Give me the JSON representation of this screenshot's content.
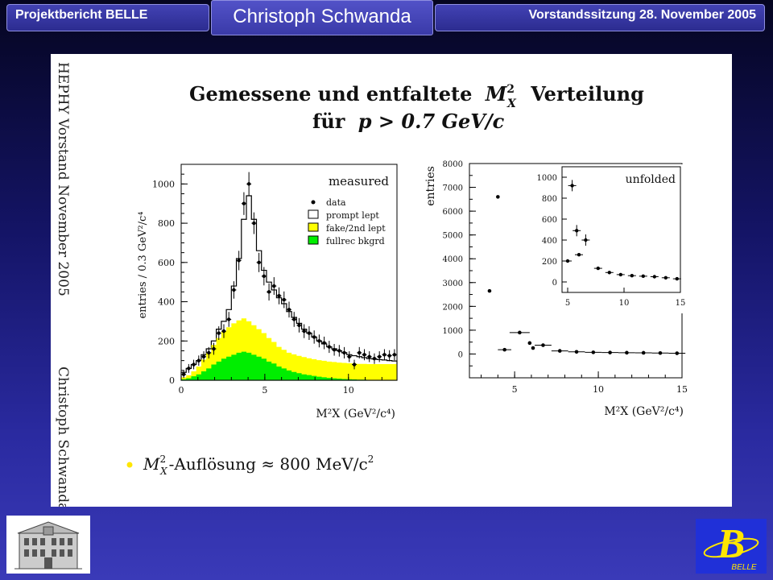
{
  "header": {
    "left": "Projektbericht BELLE",
    "center": "Christoph Schwanda",
    "right": "Vorstandssitzung 28. November 2005"
  },
  "slide": {
    "sidebar_top": "HEPHY Vorstand November 2005",
    "sidebar_bottom": "Christoph Schwanda",
    "title_line1": "Gemessene und entfaltete",
    "title_mx": "M",
    "title_sup": "2",
    "title_sub": "X",
    "title_line1_end": "Verteilung",
    "title_line2_pre": "für",
    "title_line2_math": "p > 0.7 GeV/c",
    "bullet_mx": "M",
    "bullet_sup": "2",
    "bullet_sub": "X",
    "bullet_text": "-Auflösung ≈ 800 MeV/c",
    "bullet_sup2": "2",
    "bullet_color": "#ffe600"
  },
  "chart_data": [
    {
      "type": "scatter",
      "title": "measured",
      "ylabel": "entries / 0.3 GeV²/c⁴",
      "xlabel": "M²X (GeV²/c⁴)",
      "xlim": [
        0,
        12.9
      ],
      "ylim": [
        0,
        1100
      ],
      "xticks": [
        "0",
        "5",
        "10"
      ],
      "yticks": [
        "0",
        "200",
        "400",
        "600",
        "800",
        "1000"
      ],
      "legend": [
        "data",
        "prompt lept",
        "fake/2nd lept",
        "fullrec bkgrd"
      ],
      "legend_placement": "top-right",
      "colors": {
        "data": "#000000",
        "prompt": "#ffffff",
        "fake": "#ffff00",
        "fullrec": "#00ee00"
      },
      "data": {
        "x": [
          0.15,
          0.45,
          0.75,
          1.05,
          1.35,
          1.65,
          1.95,
          2.25,
          2.55,
          2.85,
          3.15,
          3.45,
          3.75,
          4.05,
          4.35,
          4.65,
          4.95,
          5.25,
          5.55,
          5.85,
          6.15,
          6.45,
          6.75,
          7.05,
          7.35,
          7.65,
          7.95,
          8.25,
          8.55,
          8.85,
          9.15,
          9.45,
          9.75,
          10.05,
          10.35,
          10.65,
          10.95,
          11.25,
          11.55,
          11.85,
          12.15,
          12.45,
          12.75
        ],
        "y": [
          30,
          60,
          80,
          100,
          120,
          140,
          160,
          240,
          250,
          310,
          460,
          610,
          900,
          1000,
          800,
          600,
          530,
          450,
          480,
          430,
          410,
          360,
          310,
          280,
          250,
          240,
          220,
          200,
          190,
          170,
          155,
          150,
          140,
          120,
          80,
          140,
          130,
          120,
          110,
          120,
          130,
          125,
          130
        ]
      },
      "prompt_lept": [
        40,
        60,
        80,
        100,
        130,
        160,
        200,
        260,
        300,
        360,
        480,
        620,
        820,
        940,
        820,
        660,
        560,
        500,
        460,
        420,
        390,
        350,
        320,
        290,
        260,
        240,
        220,
        200,
        185,
        170,
        160,
        150,
        140,
        130,
        125,
        120,
        115,
        110,
        108,
        105,
        103,
        100,
        98
      ],
      "fake_2nd_lept": [
        10,
        15,
        25,
        40,
        60,
        80,
        100,
        120,
        140,
        150,
        160,
        165,
        170,
        160,
        150,
        140,
        130,
        120,
        110,
        100,
        95,
        90,
        90,
        88,
        88,
        86,
        85,
        84,
        84,
        83,
        83,
        82,
        82,
        81,
        81,
        80,
        80,
        80,
        80,
        80,
        80,
        80,
        80
      ],
      "fullrec_bkgrd": [
        5,
        10,
        20,
        30,
        45,
        60,
        80,
        95,
        110,
        120,
        130,
        140,
        145,
        140,
        130,
        120,
        110,
        95,
        85,
        70,
        60,
        50,
        42,
        36,
        30,
        26,
        22,
        18,
        15,
        12,
        10,
        8,
        6,
        5,
        4,
        3,
        3,
        2,
        2,
        2,
        2,
        2,
        2
      ]
    },
    {
      "type": "scatter",
      "title": "unfolded",
      "ylabel": "entries",
      "xlabel": "M²X (GeV²/c⁴)",
      "xlim": [
        2.3,
        15
      ],
      "ylim": [
        -1000,
        8000
      ],
      "xticks": [
        "5",
        "10",
        "15"
      ],
      "yticks": [
        "0",
        "1000",
        "2000",
        "3000",
        "4000",
        "5000",
        "6000",
        "7000",
        "8000"
      ],
      "data": {
        "x": [
          3.5,
          4.0,
          4.4,
          5.3,
          5.9,
          6.1,
          6.7,
          7.7,
          8.7,
          9.7,
          10.7,
          11.7,
          12.7,
          13.7,
          14.7
        ],
        "y": [
          2650,
          6600,
          180,
          900,
          460,
          250,
          370,
          130,
          90,
          70,
          60,
          55,
          50,
          40,
          30
        ],
        "xerr": [
          0,
          0,
          0.4,
          0.6,
          0,
          0,
          0.5,
          0.5,
          0.5,
          0.5,
          0.5,
          0.5,
          0.5,
          0.5,
          0.5
        ]
      },
      "inset": {
        "xlim": [
          4.5,
          15
        ],
        "ylim": [
          -100,
          1100
        ],
        "xticks": [
          "5",
          "10",
          "15"
        ],
        "yticks": [
          "0",
          "200",
          "400",
          "600",
          "800",
          "1000"
        ],
        "x": [
          5.0,
          5.4,
          5.8,
          6.0,
          6.6,
          7.7,
          8.7,
          9.7,
          10.7,
          11.7,
          12.7,
          13.7,
          14.7
        ],
        "y": [
          200,
          920,
          490,
          260,
          400,
          130,
          90,
          70,
          60,
          55,
          50,
          40,
          30
        ]
      }
    }
  ]
}
